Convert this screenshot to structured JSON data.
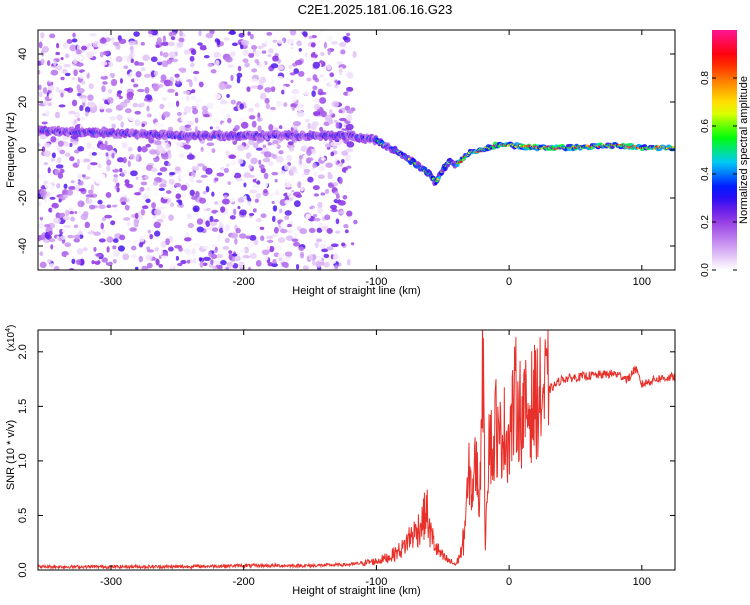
{
  "title": "C2E1.2025.181.06.16.G23",
  "chart_data": [
    {
      "type": "heatmap",
      "xlabel": "Height of straight line (km)",
      "ylabel": "Frequency (Hz)",
      "xlim": [
        -355,
        125
      ],
      "ylim": [
        -50,
        50
      ],
      "xticks": [
        -300,
        -200,
        -100,
        0,
        100
      ],
      "yticks": [
        -40,
        -20,
        0,
        20,
        40
      ],
      "ridge": {
        "x": [
          -350,
          -300,
          -250,
          -200,
          -150,
          -120,
          -100,
          -90,
          -80,
          -70,
          -60,
          -55,
          -50,
          -45,
          -40,
          -35,
          -30,
          -20,
          -10,
          0,
          20,
          50,
          80,
          100,
          125
        ],
        "y": [
          8,
          7,
          6,
          6,
          6,
          6,
          4,
          1,
          -2,
          -6,
          -10,
          -14,
          -8,
          -5,
          -6,
          -4,
          -1,
          0,
          2,
          2,
          1,
          1,
          2,
          1,
          1
        ]
      },
      "colorbar": {
        "label": "Normalized spectral amplitude",
        "range": [
          0,
          1
        ],
        "ticks": [
          "0.0",
          "0.2",
          "0.4",
          "0.6",
          "0.8"
        ],
        "colors": [
          "#ffffff",
          "#c890f0",
          "#8a2be2",
          "#0000ff",
          "#00c8ff",
          "#00ff00",
          "#ffff00",
          "#ff8c00",
          "#ff0000",
          "#ff1493"
        ]
      }
    },
    {
      "type": "line",
      "xlabel": "Height of straight line (km)",
      "ylabel": "SNR (10 * v/v)",
      "multiplier": "(x10",
      "multiplier_exp": "4",
      "xlim": [
        -355,
        125
      ],
      "ylim": [
        0,
        2.2
      ],
      "xticks": [
        -300,
        -200,
        -100,
        0,
        100
      ],
      "yticks": [
        "0.0",
        "0.5",
        "1.0",
        "1.5",
        "2.0"
      ],
      "line_color": "#e8302a",
      "series": [
        {
          "x": [
            -355,
            -300,
            -250,
            -200,
            -150,
            -120,
            -100,
            -90,
            -80,
            -75,
            -70,
            -65,
            -62,
            -60,
            -58,
            -55,
            -50,
            -45,
            -40,
            -35,
            -32,
            -30,
            -28,
            -25,
            -22,
            -20,
            -18,
            -15,
            -12,
            -10,
            -8,
            -5,
            0,
            5,
            10,
            20,
            30,
            40,
            60,
            80,
            90,
            95,
            100,
            110,
            125
          ],
          "y": [
            0.03,
            0.03,
            0.03,
            0.04,
            0.04,
            0.05,
            0.08,
            0.12,
            0.2,
            0.3,
            0.35,
            0.45,
            0.55,
            0.35,
            0.3,
            0.2,
            0.12,
            0.08,
            0.05,
            0.2,
            0.6,
            0.9,
            0.7,
            1.0,
            0.6,
            2.2,
            0.3,
            1.3,
            1.0,
            1.4,
            1.1,
            1.3,
            1.2,
            1.6,
            1.4,
            1.55,
            1.65,
            1.75,
            1.78,
            1.8,
            1.75,
            1.85,
            1.7,
            1.75,
            1.77
          ]
        }
      ]
    }
  ]
}
